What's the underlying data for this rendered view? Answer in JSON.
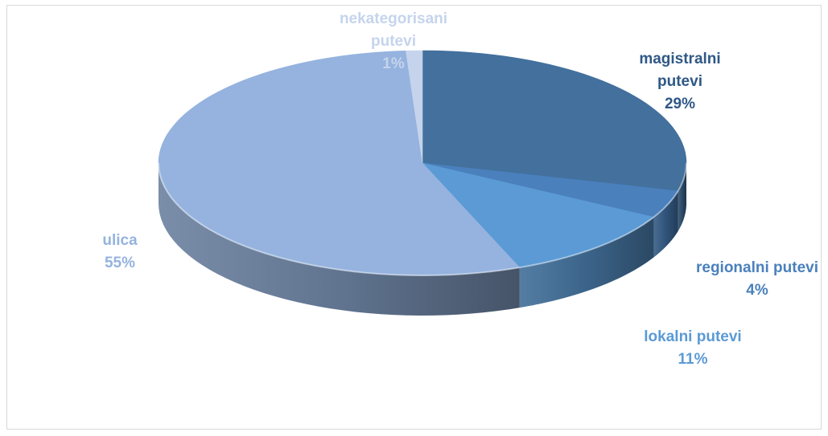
{
  "chart_data": {
    "type": "pie",
    "style": "3d-pie",
    "title": "",
    "legend": "none",
    "slices": [
      {
        "label_lines": [
          "magistralni",
          "putevi"
        ],
        "pct_label": "29%",
        "value": 29,
        "color": "#43709D"
      },
      {
        "label_lines": [
          "regionalni putevi"
        ],
        "pct_label": "4%",
        "value": 4,
        "color": "#4A80BC"
      },
      {
        "label_lines": [
          "lokalni putevi"
        ],
        "pct_label": "11%",
        "value": 11,
        "color": "#5B9AD5"
      },
      {
        "label_lines": [
          "ulica"
        ],
        "pct_label": "55%",
        "value": 55,
        "color": "#95B3DE"
      },
      {
        "label_lines": [
          "nekategorisani",
          "putevi"
        ],
        "pct_label": "1%",
        "value": 1,
        "color": "#C5D4EC"
      }
    ],
    "label_colors": [
      "#2F5886",
      "#4A80BC",
      "#5B9AD5",
      "#95B3DE",
      "#C5D4EC"
    ]
  }
}
